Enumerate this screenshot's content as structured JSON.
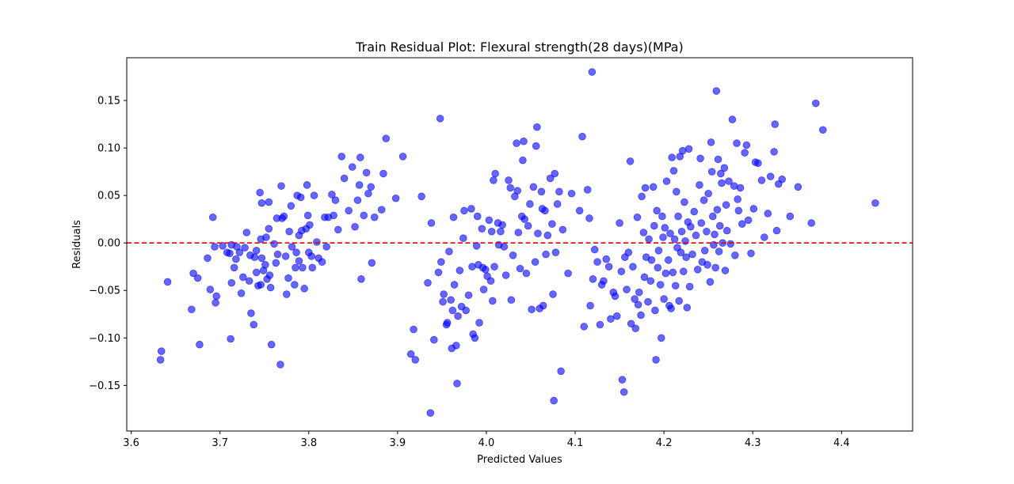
{
  "chart_data": {
    "type": "scatter",
    "title": "Train Residual Plot: Flexural strength(28 days)(MPa)",
    "xlabel": "Predicted Values",
    "ylabel": "Residuals",
    "xlim": [
      3.595,
      4.48
    ],
    "ylim": [
      -0.198,
      0.195
    ],
    "xticks": [
      3.6,
      3.7,
      3.8,
      3.9,
      4.0,
      4.1,
      4.2,
      4.3,
      4.4
    ],
    "xtick_labels": [
      "3.6",
      "3.7",
      "3.8",
      "3.9",
      "4.0",
      "4.1",
      "4.2",
      "4.3",
      "4.4"
    ],
    "yticks": [
      -0.15,
      -0.1,
      -0.05,
      0.0,
      0.05,
      0.1,
      0.15
    ],
    "ytick_labels": [
      "−0.15",
      "−0.10",
      "−0.05",
      "0.00",
      "0.05",
      "0.10",
      "0.15"
    ],
    "point_color": "#0000ff",
    "point_alpha": 0.6,
    "reference_line": {
      "y": 0,
      "color": "#e00000",
      "style": "dashed"
    },
    "points": [
      [
        3.633,
        -0.123
      ],
      [
        3.634,
        -0.114
      ],
      [
        3.641,
        -0.041
      ],
      [
        3.668,
        -0.07
      ],
      [
        3.67,
        -0.032
      ],
      [
        3.675,
        -0.037
      ],
      [
        3.677,
        -0.107
      ],
      [
        3.686,
        -0.016
      ],
      [
        3.689,
        -0.049
      ],
      [
        3.692,
        0.027
      ],
      [
        3.694,
        -0.004
      ],
      [
        3.695,
        -0.063
      ],
      [
        3.696,
        -0.056
      ],
      [
        3.703,
        -0.003
      ],
      [
        3.708,
        -0.01
      ],
      [
        3.711,
        -0.011
      ],
      [
        3.712,
        -0.101
      ],
      [
        3.713,
        -0.002
      ],
      [
        3.713,
        -0.042
      ],
      [
        3.716,
        -0.026
      ],
      [
        3.718,
        -0.017
      ],
      [
        3.719,
        -0.004
      ],
      [
        3.722,
        -0.01
      ],
      [
        3.724,
        -0.053
      ],
      [
        3.726,
        -0.036
      ],
      [
        3.728,
        -0.005
      ],
      [
        3.73,
        0.011
      ],
      [
        3.733,
        -0.04
      ],
      [
        3.734,
        -0.013
      ],
      [
        3.735,
        -0.074
      ],
      [
        3.738,
        -0.086
      ],
      [
        3.739,
        -0.015
      ],
      [
        3.741,
        -0.031
      ],
      [
        3.741,
        -0.008
      ],
      [
        3.743,
        -0.045
      ],
      [
        3.745,
        0.053
      ],
      [
        3.746,
        0.004
      ],
      [
        3.746,
        -0.044
      ],
      [
        3.747,
        -0.016
      ],
      [
        3.747,
        0.042
      ],
      [
        3.749,
        -0.029
      ],
      [
        3.751,
        -0.023
      ],
      [
        3.752,
        0.006
      ],
      [
        3.753,
        -0.038
      ],
      [
        3.755,
        0.043
      ],
      [
        3.755,
        0.015
      ],
      [
        3.756,
        -0.034
      ],
      [
        3.757,
        -0.047
      ],
      [
        3.758,
        -0.107
      ],
      [
        3.761,
        -0.001
      ],
      [
        3.763,
        -0.021
      ],
      [
        3.764,
        0.026
      ],
      [
        3.765,
        -0.012
      ],
      [
        3.768,
        -0.128
      ],
      [
        3.769,
        0.06
      ],
      [
        3.77,
        0.026
      ],
      [
        3.772,
        0.028
      ],
      [
        3.774,
        -0.014
      ],
      [
        3.775,
        -0.054
      ],
      [
        3.777,
        -0.037
      ],
      [
        3.778,
        0.012
      ],
      [
        3.78,
        0.039
      ],
      [
        3.781,
        -0.004
      ],
      [
        3.784,
        -0.044
      ],
      [
        3.785,
        -0.026
      ],
      [
        3.786,
        -0.01
      ],
      [
        3.787,
        0.05
      ],
      [
        3.789,
        0.008
      ],
      [
        3.789,
        -0.019
      ],
      [
        3.791,
        0.048
      ],
      [
        3.792,
        0.013
      ],
      [
        3.793,
        -0.026
      ],
      [
        3.795,
        -0.048
      ],
      [
        3.797,
        0.015
      ],
      [
        3.798,
        0.061
      ],
      [
        3.799,
        0.029
      ],
      [
        3.8,
        -0.01
      ],
      [
        3.801,
        0.019
      ],
      [
        3.803,
        -0.014
      ],
      [
        3.804,
        -0.026
      ],
      [
        3.806,
        0.05
      ],
      [
        3.809,
        0.001
      ],
      [
        3.811,
        -0.016
      ],
      [
        3.815,
        -0.02
      ],
      [
        3.818,
        0.027
      ],
      [
        3.82,
        -0.004
      ],
      [
        3.822,
        0.027
      ],
      [
        3.826,
        0.051
      ],
      [
        3.828,
        0.029
      ],
      [
        3.83,
        0.045
      ],
      [
        3.833,
        0.014
      ],
      [
        3.837,
        0.091
      ],
      [
        3.84,
        0.068
      ],
      [
        3.845,
        0.034
      ],
      [
        3.849,
        0.08
      ],
      [
        3.852,
        0.017
      ],
      [
        3.855,
        0.045
      ],
      [
        3.857,
        0.061
      ],
      [
        3.858,
        0.09
      ],
      [
        3.859,
        -0.038
      ],
      [
        3.862,
        0.029
      ],
      [
        3.865,
        0.074
      ],
      [
        3.867,
        0.052
      ],
      [
        3.87,
        0.059
      ],
      [
        3.871,
        -0.021
      ],
      [
        3.874,
        0.027
      ],
      [
        3.882,
        0.035
      ],
      [
        3.884,
        0.073
      ],
      [
        3.887,
        0.11
      ],
      [
        3.898,
        0.047
      ],
      [
        3.906,
        0.091
      ],
      [
        3.915,
        -0.117
      ],
      [
        3.918,
        -0.091
      ],
      [
        3.92,
        -0.123
      ],
      [
        3.927,
        0.049
      ],
      [
        3.934,
        -0.042
      ],
      [
        3.937,
        -0.179
      ],
      [
        3.938,
        0.021
      ],
      [
        3.941,
        -0.102
      ],
      [
        3.946,
        -0.031
      ],
      [
        3.948,
        0.131
      ],
      [
        3.949,
        -0.02
      ],
      [
        3.951,
        -0.062
      ],
      [
        3.952,
        -0.054
      ],
      [
        3.955,
        -0.086
      ],
      [
        3.956,
        -0.084
      ],
      [
        3.958,
        -0.009
      ],
      [
        3.96,
        -0.06
      ],
      [
        3.961,
        -0.111
      ],
      [
        3.962,
        -0.071
      ],
      [
        3.963,
        0.027
      ],
      [
        3.964,
        -0.044
      ],
      [
        3.966,
        -0.108
      ],
      [
        3.967,
        -0.148
      ],
      [
        3.968,
        -0.077
      ],
      [
        3.97,
        -0.029
      ],
      [
        3.972,
        -0.067
      ],
      [
        3.974,
        0.005
      ],
      [
        3.975,
        0.034
      ],
      [
        3.977,
        -0.071
      ],
      [
        3.98,
        -0.055
      ],
      [
        3.983,
        0.036
      ],
      [
        3.984,
        -0.025
      ],
      [
        3.985,
        -0.096
      ],
      [
        3.987,
        -0.1
      ],
      [
        3.989,
        -0.003
      ],
      [
        3.99,
        0.028
      ],
      [
        3.991,
        -0.023
      ],
      [
        3.992,
        -0.084
      ],
      [
        3.995,
        0.015
      ],
      [
        3.996,
        -0.026
      ],
      [
        3.997,
        -0.049
      ],
      [
        3.999,
        -0.028
      ],
      [
        4.001,
        -0.035
      ],
      [
        4.003,
        0.024
      ],
      [
        4.005,
        -0.04
      ],
      [
        4.006,
        0.012
      ],
      [
        4.007,
        -0.061
      ],
      [
        4.008,
        0.066
      ],
      [
        4.009,
        -0.025
      ],
      [
        4.01,
        0.073
      ],
      [
        4.013,
        0.021
      ],
      [
        4.014,
        -0.002
      ],
      [
        4.016,
        0.012
      ],
      [
        4.018,
        0.019
      ],
      [
        4.02,
        -0.004
      ],
      [
        4.022,
        -0.034
      ],
      [
        4.025,
        0.066
      ],
      [
        4.027,
        0.058
      ],
      [
        4.028,
        -0.06
      ],
      [
        4.03,
        -0.013
      ],
      [
        4.032,
        0.049
      ],
      [
        4.034,
        0.105
      ],
      [
        4.035,
        0.055
      ],
      [
        4.036,
        0.011
      ],
      [
        4.038,
        -0.027
      ],
      [
        4.04,
        0.028
      ],
      [
        4.041,
        0.087
      ],
      [
        4.042,
        0.107
      ],
      [
        4.043,
        0.025
      ],
      [
        4.045,
        -0.032
      ],
      [
        4.047,
        0.018
      ],
      [
        4.049,
        0.041
      ],
      [
        4.051,
        -0.07
      ],
      [
        4.053,
        0.059
      ],
      [
        4.055,
        -0.02
      ],
      [
        4.056,
        0.102
      ],
      [
        4.057,
        0.122
      ],
      [
        4.058,
        0.01
      ],
      [
        4.06,
        -0.069
      ],
      [
        4.062,
        0.054
      ],
      [
        4.063,
        0.036
      ],
      [
        4.064,
        -0.066
      ],
      [
        4.066,
        0.034
      ],
      [
        4.067,
        -0.012
      ],
      [
        4.069,
        0.008
      ],
      [
        4.072,
        0.068
      ],
      [
        4.074,
        0.02
      ],
      [
        4.075,
        -0.054
      ],
      [
        4.076,
        -0.166
      ],
      [
        4.077,
        0.073
      ],
      [
        4.078,
        -0.01
      ],
      [
        4.08,
        0.041
      ],
      [
        4.082,
        0.054
      ],
      [
        4.084,
        -0.135
      ],
      [
        4.086,
        0.014
      ],
      [
        4.092,
        -0.032
      ],
      [
        4.096,
        0.052
      ],
      [
        4.105,
        0.034
      ],
      [
        4.108,
        0.112
      ],
      [
        4.11,
        -0.088
      ],
      [
        4.114,
        0.056
      ],
      [
        4.116,
        0.026
      ],
      [
        4.117,
        -0.066
      ],
      [
        4.119,
        0.18
      ],
      [
        4.12,
        -0.038
      ],
      [
        4.122,
        -0.007
      ],
      [
        4.125,
        -0.02
      ],
      [
        4.128,
        -0.086
      ],
      [
        4.13,
        -0.044
      ],
      [
        4.132,
        -0.04
      ],
      [
        4.135,
        -0.017
      ],
      [
        4.138,
        -0.025
      ],
      [
        4.14,
        -0.08
      ],
      [
        4.143,
        -0.052
      ],
      [
        4.145,
        -0.056
      ],
      [
        4.147,
        -0.077
      ],
      [
        4.15,
        0.021
      ],
      [
        4.152,
        -0.03
      ],
      [
        4.153,
        -0.144
      ],
      [
        4.155,
        -0.157
      ],
      [
        4.156,
        -0.015
      ],
      [
        4.158,
        -0.049
      ],
      [
        4.16,
        -0.01
      ],
      [
        4.162,
        0.086
      ],
      [
        4.163,
        -0.085
      ],
      [
        4.165,
        -0.025
      ],
      [
        4.167,
        -0.059
      ],
      [
        4.168,
        -0.09
      ],
      [
        4.17,
        0.027
      ],
      [
        4.171,
        -0.065
      ],
      [
        4.172,
        -0.052
      ],
      [
        4.174,
        -0.076
      ],
      [
        4.175,
        0.049
      ],
      [
        4.177,
        0.011
      ],
      [
        4.178,
        -0.036
      ],
      [
        4.179,
        0.058
      ],
      [
        4.18,
        -0.015
      ],
      [
        4.182,
        -0.062
      ],
      [
        4.183,
        0.004
      ],
      [
        4.185,
        -0.04
      ],
      [
        4.186,
        -0.018
      ],
      [
        4.188,
        0.059
      ],
      [
        4.189,
        0.018
      ],
      [
        4.19,
        -0.071
      ],
      [
        4.191,
        -0.123
      ],
      [
        4.192,
        0.034
      ],
      [
        4.193,
        -0.026
      ],
      [
        4.194,
        -0.008
      ],
      [
        4.196,
        -0.044
      ],
      [
        4.197,
        -0.1
      ],
      [
        4.198,
        0.028
      ],
      [
        4.199,
        0.006
      ],
      [
        4.2,
        -0.059
      ],
      [
        4.201,
        0.016
      ],
      [
        4.202,
        -0.032
      ],
      [
        4.203,
        0.065
      ],
      [
        4.205,
        -0.018
      ],
      [
        4.206,
        -0.066
      ],
      [
        4.207,
        0.01
      ],
      [
        4.208,
        -0.069
      ],
      [
        4.209,
        0.09
      ],
      [
        4.21,
        -0.031
      ],
      [
        4.211,
        0.076
      ],
      [
        4.212,
        0.004
      ],
      [
        4.213,
        -0.045
      ],
      [
        4.214,
        0.054
      ],
      [
        4.215,
        -0.005
      ],
      [
        4.216,
        0.028
      ],
      [
        4.217,
        -0.061
      ],
      [
        4.218,
        0.091
      ],
      [
        4.219,
        -0.01
      ],
      [
        4.22,
        0.012
      ],
      [
        4.221,
        0.097
      ],
      [
        4.222,
        -0.03
      ],
      [
        4.223,
        0.043
      ],
      [
        4.224,
        0.002
      ],
      [
        4.225,
        -0.015
      ],
      [
        4.226,
        -0.068
      ],
      [
        4.227,
        0.022
      ],
      [
        4.228,
        0.099
      ],
      [
        4.229,
        -0.046
      ],
      [
        4.23,
        0.017
      ],
      [
        4.232,
        -0.012
      ],
      [
        4.234,
        0.033
      ],
      [
        4.236,
        0.008
      ],
      [
        4.238,
        -0.028
      ],
      [
        4.24,
        0.061
      ],
      [
        4.241,
        0.089
      ],
      [
        4.242,
        0.021
      ],
      [
        4.243,
        -0.02
      ],
      [
        4.245,
        0.045
      ],
      [
        4.246,
        -0.008
      ],
      [
        4.248,
        0.012
      ],
      [
        4.249,
        -0.023
      ],
      [
        4.25,
        0.052
      ],
      [
        4.252,
        -0.041
      ],
      [
        4.253,
        0.106
      ],
      [
        4.254,
        0.075
      ],
      [
        4.255,
        0.028
      ],
      [
        4.256,
        -0.002
      ],
      [
        4.257,
        0.009
      ],
      [
        4.258,
        -0.026
      ],
      [
        4.259,
        0.16
      ],
      [
        4.26,
        0.035
      ],
      [
        4.261,
        0.088
      ],
      [
        4.262,
        -0.009
      ],
      [
        4.263,
        0.018
      ],
      [
        4.264,
        0.073
      ],
      [
        4.265,
        0.063
      ],
      [
        4.266,
        0.0
      ],
      [
        4.268,
        0.079
      ],
      [
        4.269,
        -0.029
      ],
      [
        4.27,
        0.04
      ],
      [
        4.271,
        0.013
      ],
      [
        4.273,
        0.065
      ],
      [
        4.275,
        -0.001
      ],
      [
        4.277,
        0.13
      ],
      [
        4.279,
        0.06
      ],
      [
        4.28,
        -0.013
      ],
      [
        4.282,
        0.105
      ],
      [
        4.283,
        0.046
      ],
      [
        4.284,
        0.034
      ],
      [
        4.286,
        0.058
      ],
      [
        4.288,
        0.02
      ],
      [
        4.291,
        0.095
      ],
      [
        4.293,
        0.103
      ],
      [
        4.295,
        0.024
      ],
      [
        4.298,
        -0.011
      ],
      [
        4.301,
        0.036
      ],
      [
        4.303,
        0.085
      ],
      [
        4.306,
        0.084
      ],
      [
        4.31,
        0.066
      ],
      [
        4.313,
        0.006
      ],
      [
        4.317,
        0.031
      ],
      [
        4.32,
        0.07
      ],
      [
        4.324,
        0.096
      ],
      [
        4.325,
        0.125
      ],
      [
        4.327,
        0.013
      ],
      [
        4.329,
        0.062
      ],
      [
        4.333,
        0.067
      ],
      [
        4.342,
        0.028
      ],
      [
        4.351,
        0.059
      ],
      [
        4.366,
        0.021
      ],
      [
        4.371,
        0.147
      ],
      [
        4.379,
        0.119
      ],
      [
        4.438,
        0.042
      ]
    ]
  }
}
